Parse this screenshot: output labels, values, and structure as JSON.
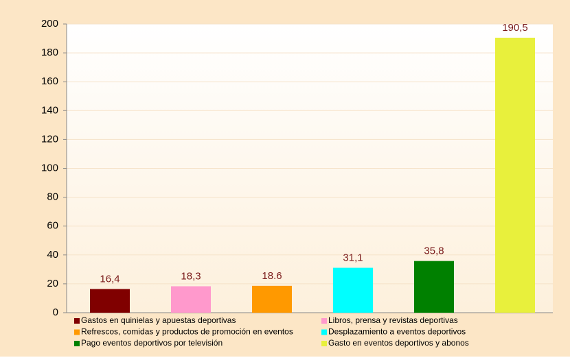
{
  "chart_data": {
    "type": "bar",
    "series": [
      {
        "name": "Gastos en quinielas y apuestas deportivas",
        "color": "#800000",
        "values": [
          16.4
        ],
        "value_labels": [
          "16,4"
        ]
      },
      {
        "name": "Libros, prensa y revistas deportivas",
        "color": "#ff99cc",
        "values": [
          18.3
        ],
        "value_labels": [
          "18,3"
        ]
      },
      {
        "name": "Refrescos, comidas y productos de promoción en eventos",
        "color": "#ff9900",
        "values": [
          18.6
        ],
        "value_labels": [
          "18.6"
        ]
      },
      {
        "name": "Desplazamiento a eventos deportivos",
        "color": "#00ffff",
        "values": [
          31.1
        ],
        "value_labels": [
          "31,1"
        ]
      },
      {
        "name": "Pago eventos deportivos por televisión",
        "color": "#008000",
        "values": [
          35.8
        ],
        "value_labels": [
          "35,8"
        ]
      },
      {
        "name": "Gasto en eventos deportivos y abonos",
        "color": "#e8f03c",
        "values": [
          190.5
        ],
        "value_labels": [
          "190,5"
        ]
      }
    ],
    "ylim": [
      0,
      200
    ],
    "yticks": [
      0,
      20,
      40,
      60,
      80,
      100,
      120,
      140,
      160,
      180,
      200
    ],
    "grid": true,
    "legend": "bottom"
  }
}
